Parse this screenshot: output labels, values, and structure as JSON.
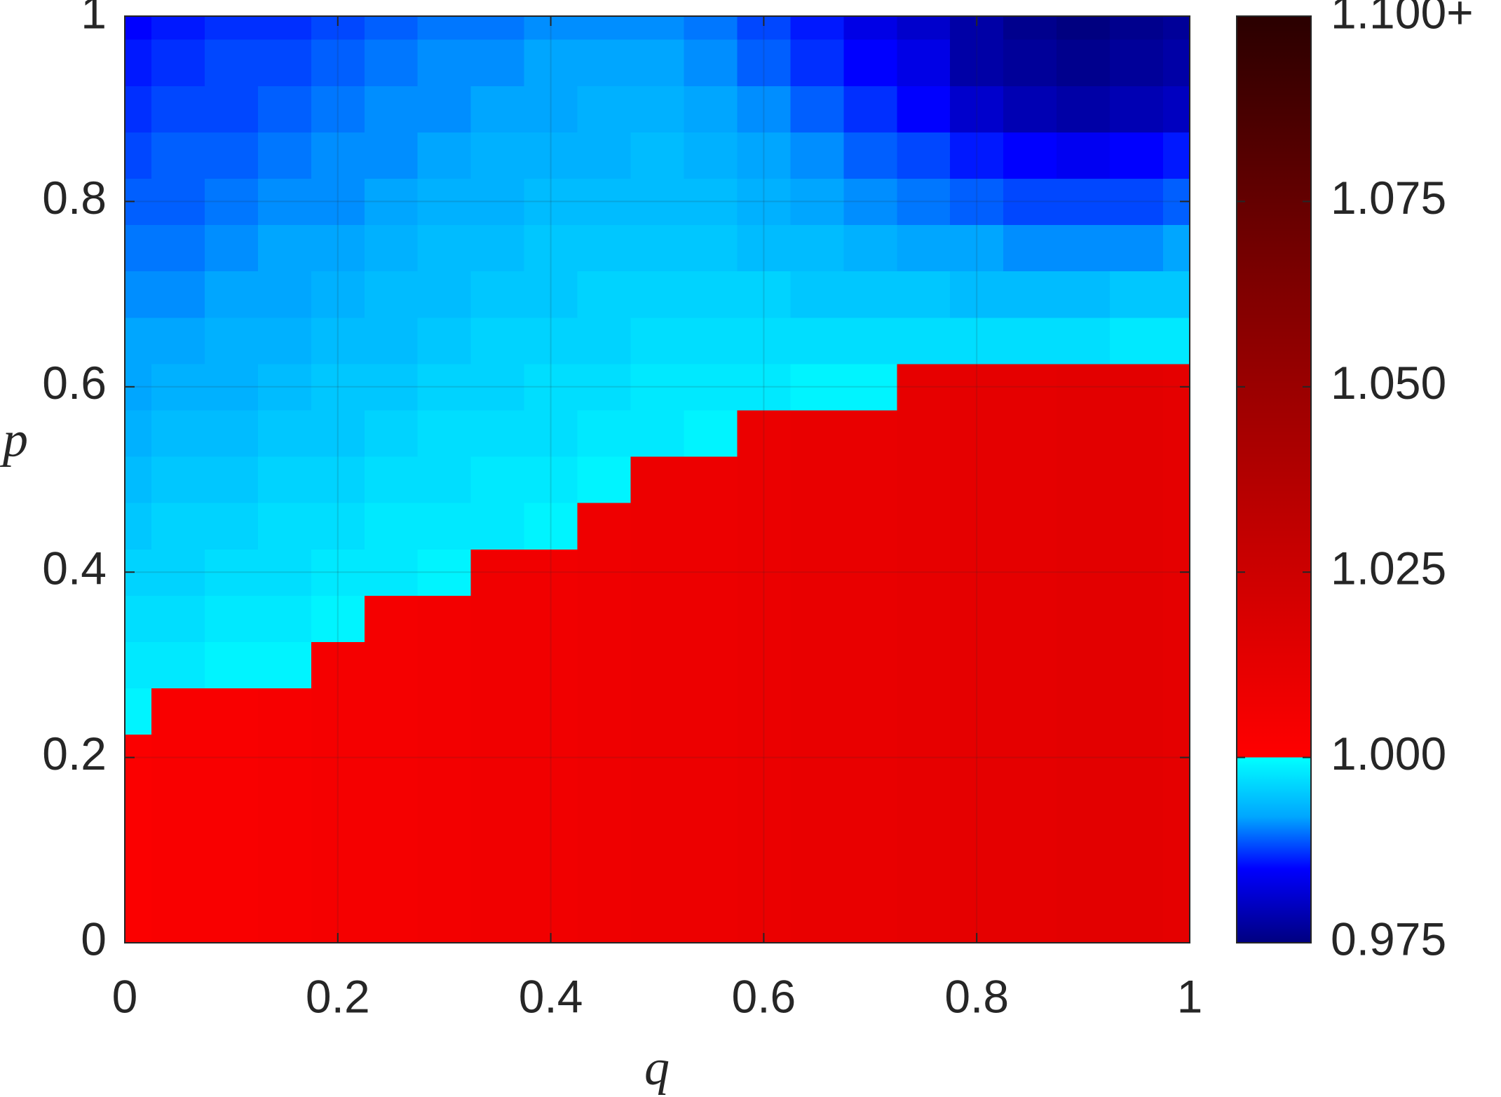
{
  "chart_data": {
    "type": "heatmap",
    "xlabel": "q",
    "ylabel": "p",
    "xlim": [
      0,
      1
    ],
    "ylim": [
      0,
      1
    ],
    "xticks": [
      0,
      0.2,
      0.4,
      0.6,
      0.8,
      1
    ],
    "yticks": [
      0,
      0.2,
      0.4,
      0.6,
      0.8,
      1
    ],
    "grid": true,
    "clim": [
      0.975,
      1.1
    ],
    "cticks": [
      0.975,
      {
        "value": 1,
        "label": "1.000"
      },
      1.025,
      {
        "value": 1.05,
        "label": "1.050"
      },
      1.075,
      {
        "value": 1.1,
        "label": "1.100+"
      }
    ],
    "colorscale": [
      {
        "value": 0.975,
        "color": "#000080"
      },
      {
        "value": 0.985,
        "color": "#0000ff"
      },
      {
        "value": 0.992,
        "color": "#00a6ff"
      },
      {
        "value": 1,
        "color": "#00ffff"
      },
      {
        "value": 1,
        "color": "#ff0000"
      },
      {
        "value": 1.063,
        "color": "#800000"
      },
      {
        "value": 1.1,
        "color": "#2a0000"
      }
    ],
    "x": [
      0,
      0.05,
      0.1,
      0.15,
      0.2,
      0.25,
      0.3,
      0.35,
      0.4,
      0.45,
      0.5,
      0.55,
      0.6,
      0.65,
      0.7,
      0.75,
      0.8,
      0.85,
      0.9,
      0.95,
      1
    ],
    "y": [
      0,
      0.05,
      0.1,
      0.15,
      0.2,
      0.25,
      0.3,
      0.35,
      0.4,
      0.45,
      0.5,
      0.55,
      0.6,
      0.65,
      0.7,
      0.75,
      0.8,
      0.85,
      0.9,
      0.95,
      1
    ],
    "z": [
      [
        1.002,
        1.003,
        1.003,
        1.004,
        1.005,
        1.005,
        1.006,
        1.007,
        1.007,
        1.008,
        1.009,
        1.009,
        1.01,
        1.011,
        1.011,
        1.012,
        1.013,
        1.013,
        1.014,
        1.014,
        1.013
      ],
      [
        1.002,
        1.003,
        1.003,
        1.004,
        1.005,
        1.005,
        1.006,
        1.007,
        1.007,
        1.008,
        1.009,
        1.009,
        1.01,
        1.011,
        1.011,
        1.012,
        1.013,
        1.013,
        1.014,
        1.014,
        1.013
      ],
      [
        1.002,
        1.003,
        1.003,
        1.004,
        1.005,
        1.005,
        1.006,
        1.007,
        1.007,
        1.008,
        1.009,
        1.009,
        1.01,
        1.011,
        1.011,
        1.012,
        1.013,
        1.013,
        1.014,
        1.014,
        1.013
      ],
      [
        1.002,
        1.003,
        1.003,
        1.004,
        1.005,
        1.005,
        1.006,
        1.007,
        1.007,
        1.008,
        1.009,
        1.009,
        1.01,
        1.011,
        1.011,
        1.012,
        1.013,
        1.013,
        1.014,
        1.014,
        1.013
      ],
      [
        1.002,
        1.003,
        1.003,
        1.004,
        1.005,
        1.005,
        1.006,
        1.007,
        1.007,
        1.008,
        1.009,
        1.009,
        1.01,
        1.011,
        1.011,
        1.012,
        1.013,
        1.013,
        1.014,
        1.014,
        1.013
      ],
      [
        0.999,
        1.003,
        1.003,
        1.004,
        1.005,
        1.005,
        1.006,
        1.007,
        1.007,
        1.008,
        1.009,
        1.009,
        1.01,
        1.011,
        1.011,
        1.012,
        1.013,
        1.013,
        1.014,
        1.014,
        1.013
      ],
      [
        0.998,
        0.998,
        0.999,
        0.999,
        1.005,
        1.005,
        1.006,
        1.007,
        1.007,
        1.008,
        1.009,
        1.009,
        1.01,
        1.011,
        1.011,
        1.012,
        1.013,
        1.013,
        1.014,
        1.014,
        1.013
      ],
      [
        0.997,
        0.997,
        0.998,
        0.998,
        0.999,
        1.005,
        1.006,
        1.007,
        1.007,
        1.008,
        1.009,
        1.009,
        1.01,
        1.011,
        1.011,
        1.012,
        1.013,
        1.013,
        1.014,
        1.014,
        1.013
      ],
      [
        0.996,
        0.996,
        0.997,
        0.997,
        0.998,
        0.998,
        0.999,
        1.007,
        1.007,
        1.008,
        1.009,
        1.009,
        1.01,
        1.011,
        1.011,
        1.012,
        1.013,
        1.013,
        1.014,
        1.014,
        1.013
      ],
      [
        0.995,
        0.996,
        0.996,
        0.997,
        0.997,
        0.998,
        0.998,
        0.998,
        0.999,
        1.008,
        1.009,
        1.009,
        1.01,
        1.011,
        1.011,
        1.012,
        1.013,
        1.013,
        1.014,
        1.014,
        1.013
      ],
      [
        0.994,
        0.995,
        0.995,
        0.996,
        0.996,
        0.997,
        0.997,
        0.998,
        0.998,
        0.999,
        1.009,
        1.009,
        1.01,
        1.011,
        1.011,
        1.012,
        1.013,
        1.013,
        1.014,
        1.014,
        1.013
      ],
      [
        0.993,
        0.994,
        0.994,
        0.995,
        0.995,
        0.996,
        0.997,
        0.997,
        0.997,
        0.998,
        0.998,
        0.999,
        1.01,
        1.011,
        1.011,
        1.012,
        1.013,
        1.013,
        1.014,
        1.014,
        1.013
      ],
      [
        0.992,
        0.993,
        0.993,
        0.994,
        0.995,
        0.995,
        0.996,
        0.996,
        0.997,
        0.997,
        0.998,
        0.998,
        0.998,
        0.999,
        0.999,
        1.012,
        1.013,
        1.013,
        1.014,
        1.014,
        1.013
      ],
      [
        0.992,
        0.992,
        0.993,
        0.993,
        0.994,
        0.994,
        0.995,
        0.996,
        0.996,
        0.996,
        0.997,
        0.997,
        0.997,
        0.997,
        0.997,
        0.997,
        0.997,
        0.997,
        0.997,
        0.998,
        0.998
      ],
      [
        0.991,
        0.991,
        0.992,
        0.992,
        0.993,
        0.994,
        0.994,
        0.995,
        0.995,
        0.996,
        0.996,
        0.996,
        0.996,
        0.995,
        0.995,
        0.995,
        0.994,
        0.994,
        0.994,
        0.995,
        0.995
      ],
      [
        0.99,
        0.99,
        0.991,
        0.992,
        0.992,
        0.993,
        0.994,
        0.994,
        0.995,
        0.995,
        0.995,
        0.995,
        0.994,
        0.994,
        0.993,
        0.992,
        0.992,
        0.991,
        0.991,
        0.991,
        0.992
      ],
      [
        0.989,
        0.989,
        0.99,
        0.991,
        0.991,
        0.992,
        0.993,
        0.993,
        0.994,
        0.994,
        0.994,
        0.994,
        0.993,
        0.992,
        0.991,
        0.99,
        0.989,
        0.988,
        0.988,
        0.988,
        0.989
      ],
      [
        0.988,
        0.989,
        0.989,
        0.99,
        0.991,
        0.991,
        0.992,
        0.993,
        0.993,
        0.993,
        0.994,
        0.993,
        0.992,
        0.991,
        0.989,
        0.988,
        0.986,
        0.985,
        0.984,
        0.985,
        0.986
      ],
      [
        0.987,
        0.988,
        0.988,
        0.989,
        0.99,
        0.991,
        0.991,
        0.992,
        0.992,
        0.993,
        0.993,
        0.992,
        0.991,
        0.989,
        0.987,
        0.985,
        0.981,
        0.979,
        0.978,
        0.979,
        0.98
      ],
      [
        0.986,
        0.987,
        0.988,
        0.988,
        0.989,
        0.99,
        0.991,
        0.991,
        0.992,
        0.992,
        0.992,
        0.991,
        0.989,
        0.987,
        0.985,
        0.983,
        0.978,
        0.977,
        0.976,
        0.977,
        0.978
      ],
      [
        0.985,
        0.986,
        0.987,
        0.987,
        0.988,
        0.989,
        0.99,
        0.99,
        0.991,
        0.991,
        0.991,
        0.99,
        0.988,
        0.986,
        0.983,
        0.981,
        0.978,
        0.976,
        0.975,
        0.976,
        0.977
      ]
    ]
  }
}
